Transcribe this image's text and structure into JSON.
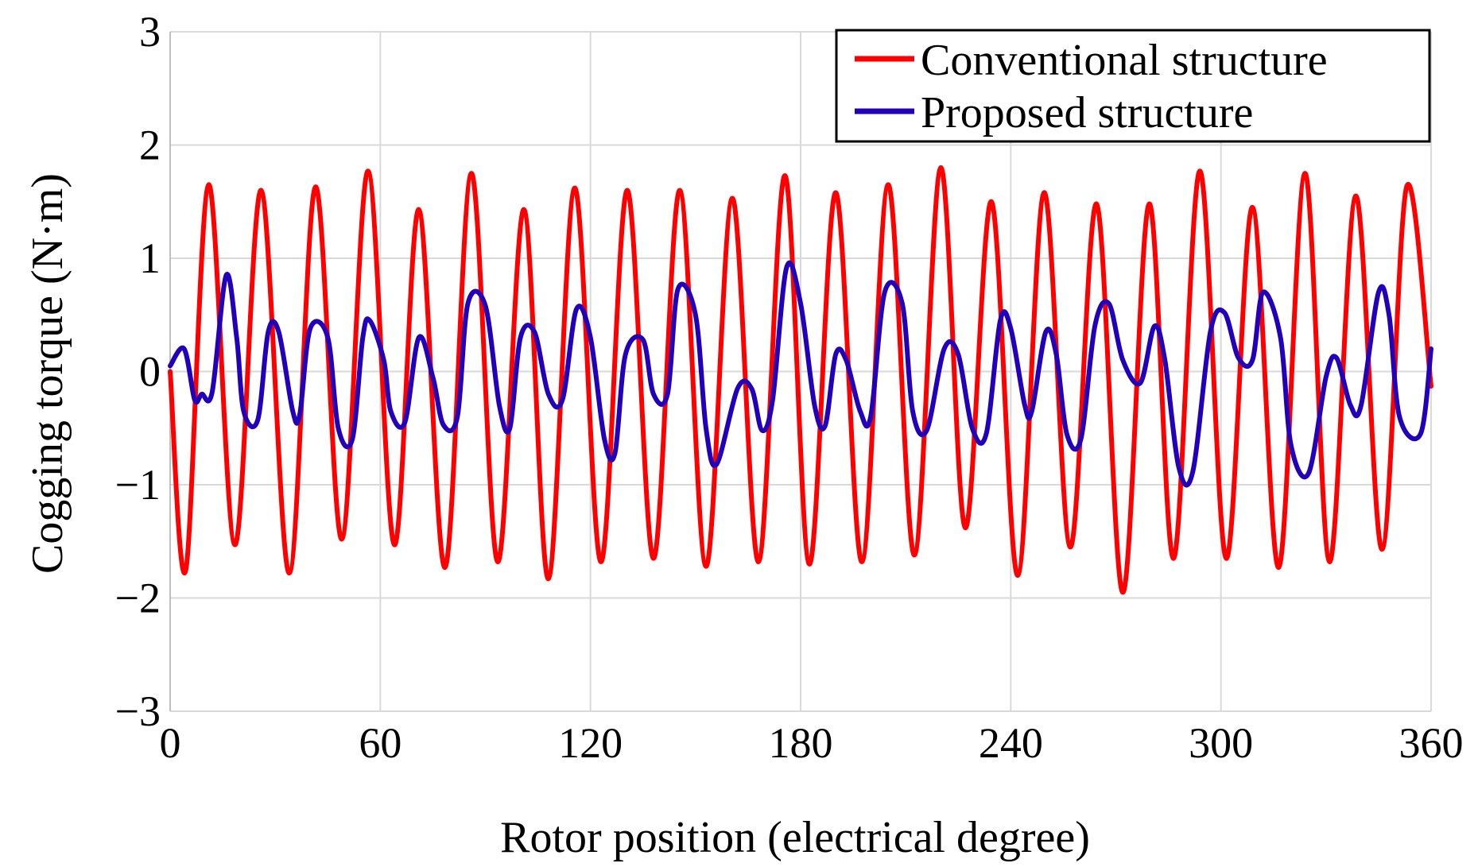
{
  "chart_data": {
    "type": "line",
    "title": "",
    "xlabel": "Rotor position (electrical degree)",
    "ylabel": "Cogging torque (N·m)",
    "xlim": [
      0,
      360
    ],
    "ylim": [
      -3,
      3
    ],
    "x_ticks": [
      0,
      60,
      120,
      180,
      240,
      300,
      360
    ],
    "y_ticks": [
      3,
      2,
      1,
      0,
      -1,
      -2,
      -3
    ],
    "x_tick_labels": [
      "0",
      "60",
      "120",
      "180",
      "240",
      "300",
      "360"
    ],
    "y_tick_labels": [
      "3",
      "2",
      "1",
      "0",
      "−1",
      "−2",
      "−3"
    ],
    "grid": true,
    "legend_position": "top-right",
    "series": [
      {
        "name": "Conventional structure",
        "color": "#ff0000",
        "x": [
          0,
          4.5,
          11,
          18.5,
          26,
          34,
          41.5,
          49,
          56.5,
          64,
          71,
          78.5,
          86,
          93.5,
          101,
          108,
          115.5,
          123,
          130.5,
          138,
          145.5,
          153,
          160.5,
          168,
          175.5,
          182.5,
          190,
          197.5,
          205,
          212.5,
          220,
          227,
          234.5,
          242,
          249.5,
          257,
          264.5,
          272,
          279.5,
          286.5,
          294,
          301.5,
          309,
          316.5,
          324,
          331,
          338.5,
          346,
          353,
          360
        ],
        "values": [
          0,
          -1.75,
          1.65,
          -1.53,
          1.6,
          -1.78,
          1.63,
          -1.48,
          1.77,
          -1.53,
          1.43,
          -1.73,
          1.75,
          -1.68,
          1.43,
          -1.83,
          1.62,
          -1.68,
          1.6,
          -1.65,
          1.6,
          -1.72,
          1.53,
          -1.68,
          1.73,
          -1.7,
          1.58,
          -1.68,
          1.65,
          -1.62,
          1.8,
          -1.38,
          1.5,
          -1.8,
          1.58,
          -1.55,
          1.48,
          -1.95,
          1.48,
          -1.65,
          1.77,
          -1.65,
          1.45,
          -1.73,
          1.75,
          -1.68,
          1.55,
          -1.57,
          1.63,
          -0.13
        ]
      },
      {
        "name": "Proposed structure",
        "color": "#2200bb",
        "x": [
          0,
          4,
          7,
          9,
          12,
          16,
          19,
          21,
          25,
          28,
          31,
          35,
          37,
          40,
          45,
          48,
          52,
          55,
          57,
          61,
          63,
          67,
          71,
          75,
          78,
          82,
          85,
          90,
          94,
          97,
          100,
          104,
          108,
          112,
          116,
          120,
          124,
          127,
          130,
          135,
          138,
          142,
          145,
          150,
          153,
          156,
          162,
          166,
          169,
          172,
          176,
          180,
          184,
          187,
          190,
          193,
          197,
          200,
          204,
          209,
          212,
          216,
          221,
          225,
          229,
          233,
          237,
          240,
          244,
          246,
          250,
          253,
          256,
          260,
          264,
          268,
          272,
          277,
          281,
          284,
          288,
          292,
          297,
          301,
          305,
          309,
          312,
          317,
          320,
          325,
          330,
          333,
          337,
          340,
          345,
          348,
          351,
          357,
          360
        ],
        "values": [
          0.05,
          0.2,
          -0.25,
          -0.2,
          -0.18,
          0.85,
          0.3,
          -0.35,
          -0.43,
          0.35,
          0.35,
          -0.35,
          -0.38,
          0.38,
          0.3,
          -0.5,
          -0.6,
          0.3,
          0.45,
          0.1,
          -0.35,
          -0.45,
          0.3,
          -0.05,
          -0.47,
          -0.4,
          0.6,
          0.58,
          -0.3,
          -0.5,
          0.3,
          0.35,
          -0.2,
          -0.25,
          0.55,
          0.3,
          -0.6,
          -0.72,
          0.15,
          0.28,
          -0.2,
          -0.2,
          0.73,
          0.5,
          -0.5,
          -0.82,
          -0.15,
          -0.15,
          -0.52,
          -0.25,
          0.92,
          0.6,
          -0.3,
          -0.48,
          0.15,
          0.1,
          -0.35,
          -0.4,
          0.7,
          0.6,
          -0.35,
          -0.52,
          0.2,
          0.15,
          -0.5,
          -0.55,
          0.45,
          0.38,
          -0.3,
          -0.35,
          0.35,
          0.15,
          -0.55,
          -0.6,
          0.4,
          0.6,
          0.1,
          -0.1,
          0.4,
          0.1,
          -0.85,
          -0.88,
          0.35,
          0.52,
          0.12,
          0.1,
          0.7,
          0.3,
          -0.65,
          -0.9,
          -0.05,
          0.12,
          -0.3,
          -0.3,
          0.7,
          0.5,
          -0.4,
          -0.55,
          0.2
        ]
      }
    ]
  }
}
